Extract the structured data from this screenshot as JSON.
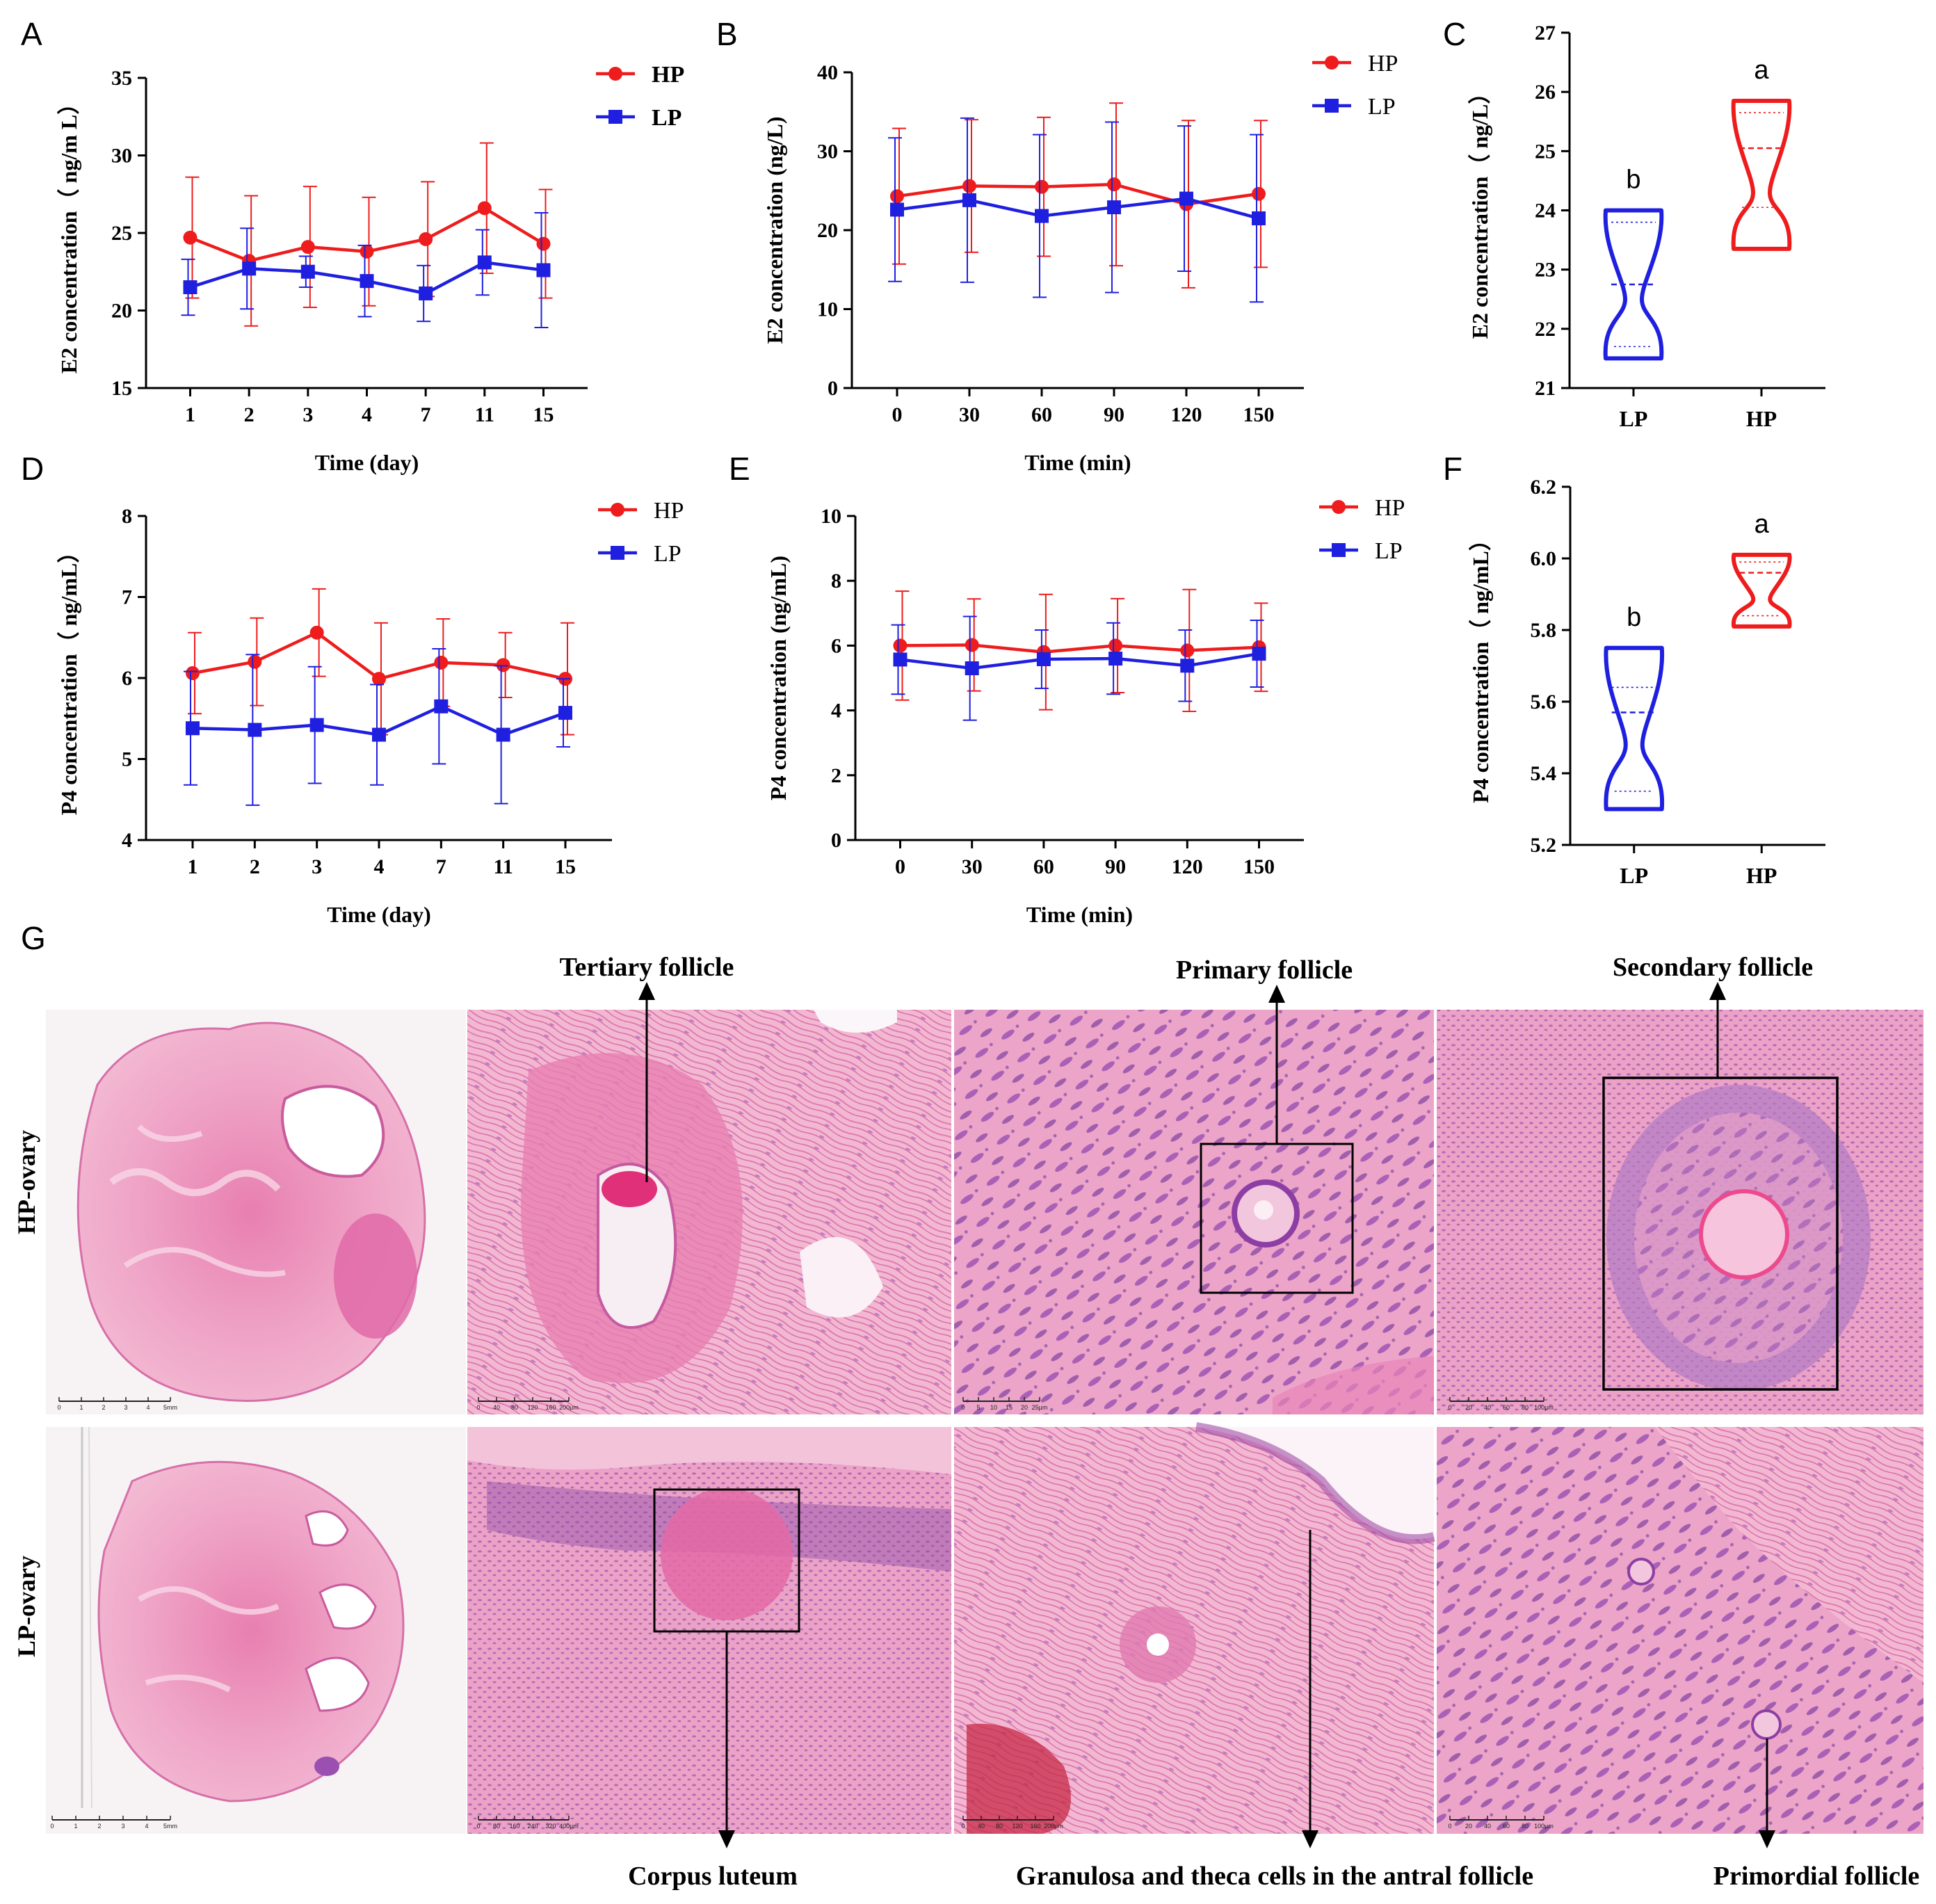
{
  "chart_data": [
    {
      "id": "A",
      "type": "line",
      "letter": "A",
      "xlabel": "Time (day)",
      "ylabel": "E2 concentration（ ng/m L）",
      "categories": [
        "1",
        "2",
        "3",
        "4",
        "7",
        "11",
        "15"
      ],
      "ylim": [
        15,
        35
      ],
      "yticks": [
        15,
        20,
        25,
        30,
        35
      ],
      "legend_bold": true,
      "series": [
        {
          "name": "HP",
          "color": "#ee1c1c",
          "marker": "circle",
          "values": [
            24.7,
            23.2,
            24.1,
            23.8,
            24.6,
            26.6,
            24.3
          ],
          "errors": [
            3.9,
            4.2,
            3.9,
            3.5,
            3.7,
            4.2,
            3.5
          ]
        },
        {
          "name": "LP",
          "color": "#1f1fe0",
          "marker": "square",
          "values": [
            21.5,
            22.7,
            22.5,
            21.9,
            21.1,
            23.1,
            22.6
          ],
          "errors": [
            1.8,
            2.6,
            1.0,
            2.3,
            1.8,
            2.1,
            3.7
          ]
        }
      ]
    },
    {
      "id": "B",
      "type": "line",
      "letter": "B",
      "xlabel": "Time (min)",
      "ylabel": "E2 concentration (ng/L)",
      "categories": [
        "0",
        "30",
        "60",
        "90",
        "120",
        "150"
      ],
      "ylim": [
        0,
        40
      ],
      "yticks": [
        0,
        10,
        20,
        30,
        40
      ],
      "legend_bold": false,
      "series": [
        {
          "name": "HP",
          "color": "#ee1c1c",
          "marker": "circle",
          "values": [
            24.3,
            25.6,
            25.5,
            25.8,
            23.3,
            24.6
          ],
          "errors": [
            8.6,
            8.4,
            8.8,
            10.3,
            10.6,
            9.3
          ]
        },
        {
          "name": "LP",
          "color": "#1f1fe0",
          "marker": "square",
          "values": [
            22.6,
            23.8,
            21.8,
            22.9,
            24.0,
            21.5
          ],
          "errors": [
            9.1,
            10.4,
            10.3,
            10.8,
            9.2,
            10.6
          ]
        }
      ]
    },
    {
      "id": "C",
      "type": "violin",
      "letter": "C",
      "ylabel": "E2 concentration（ ng/L）",
      "categories": [
        "LP",
        "HP"
      ],
      "ylim": [
        21,
        27
      ],
      "yticks": [
        21,
        22,
        23,
        24,
        25,
        26,
        27
      ],
      "groups": [
        {
          "name": "LP",
          "color": "#1f1fe0",
          "min": 21.5,
          "max": 24.0,
          "median": 22.75,
          "q1": 21.7,
          "q3": 23.8,
          "sig": "b"
        },
        {
          "name": "HP",
          "color": "#ee1c1c",
          "min": 23.35,
          "max": 25.85,
          "median": 25.05,
          "q1": 24.05,
          "q3": 25.65,
          "sig": "a"
        }
      ]
    },
    {
      "id": "D",
      "type": "line",
      "letter": "D",
      "xlabel": "Time (day)",
      "ylabel": "P4 concentration（ ng/mL）",
      "categories": [
        "1",
        "2",
        "3",
        "4",
        "7",
        "11",
        "15"
      ],
      "ylim": [
        4,
        8
      ],
      "yticks": [
        4,
        5,
        6,
        7,
        8
      ],
      "legend_bold": false,
      "series": [
        {
          "name": "HP",
          "color": "#ee1c1c",
          "marker": "circle",
          "values": [
            6.06,
            6.2,
            6.56,
            5.99,
            6.19,
            6.16,
            5.99
          ],
          "errors": [
            0.5,
            0.54,
            0.54,
            0.69,
            0.54,
            0.4,
            0.69
          ]
        },
        {
          "name": "LP",
          "color": "#1f1fe0",
          "marker": "square",
          "values": [
            5.38,
            5.36,
            5.42,
            5.3,
            5.65,
            5.3,
            5.57
          ],
          "errors": [
            0.7,
            0.93,
            0.72,
            0.62,
            0.71,
            0.85,
            0.42
          ]
        }
      ]
    },
    {
      "id": "E",
      "type": "line",
      "letter": "E",
      "xlabel": "Time (min)",
      "ylabel": "P4 concentration (ng/mL)",
      "categories": [
        "0",
        "30",
        "60",
        "90",
        "120",
        "150"
      ],
      "ylim": [
        0,
        10
      ],
      "yticks": [
        0,
        2,
        4,
        6,
        8,
        10
      ],
      "legend_bold": false,
      "series": [
        {
          "name": "HP",
          "color": "#ee1c1c",
          "marker": "circle",
          "values": [
            6.0,
            6.02,
            5.8,
            6.0,
            5.85,
            5.95
          ],
          "errors": [
            1.68,
            1.42,
            1.78,
            1.45,
            1.88,
            1.36
          ]
        },
        {
          "name": "LP",
          "color": "#1f1fe0",
          "marker": "square",
          "values": [
            5.57,
            5.3,
            5.58,
            5.6,
            5.38,
            5.75
          ],
          "errors": [
            1.07,
            1.6,
            0.9,
            1.1,
            1.1,
            1.03
          ]
        }
      ]
    },
    {
      "id": "F",
      "type": "violin",
      "letter": "F",
      "ylabel": "P4 concentration（ ng/mL）",
      "categories": [
        "LP",
        "HP"
      ],
      "ylim": [
        5.2,
        6.2
      ],
      "yticks": [
        5.2,
        5.4,
        5.6,
        5.8,
        6.0,
        6.2
      ],
      "tick_decimals": 1,
      "groups": [
        {
          "name": "LP",
          "color": "#1f1fe0",
          "min": 5.3,
          "max": 5.75,
          "median": 5.57,
          "q1": 5.35,
          "q3": 5.64,
          "sig": "b"
        },
        {
          "name": "HP",
          "color": "#ee1c1c",
          "min": 5.81,
          "max": 6.01,
          "median": 5.96,
          "q1": 5.84,
          "q3": 5.99,
          "sig": "a"
        }
      ]
    }
  ],
  "panel_g": {
    "letter": "G",
    "row_labels": [
      "HP-ovary",
      "LP-ovary"
    ],
    "annotations_top": [
      "Tertiary follicle",
      "Primary follicle",
      "Secondary follicle"
    ],
    "annotations_bottom": [
      "Corpus luteum",
      "Granulosa and theca cells in the antral follicle",
      "Primordial follicle"
    ],
    "scale_bars": [
      {
        "ticks": [
          "0",
          "1",
          "2",
          "3",
          "4",
          "5mm"
        ]
      },
      {
        "ticks": [
          "0",
          "40",
          "80",
          "120",
          "160",
          "200µm"
        ]
      },
      {
        "ticks": [
          "0",
          "5",
          "10",
          "15",
          "20",
          "25µm"
        ]
      },
      {
        "ticks": [
          "0",
          "20",
          "40",
          "60",
          "80",
          "100µm"
        ]
      },
      {
        "ticks": [
          "0",
          "1",
          "2",
          "3",
          "4",
          "5mm"
        ]
      },
      {
        "ticks": [
          "0",
          "80",
          "160",
          "240",
          "320",
          "400µm"
        ]
      },
      {
        "ticks": [
          "0",
          "40",
          "80",
          "120",
          "160",
          "200µm"
        ]
      },
      {
        "ticks": [
          "0",
          "20",
          "40",
          "60",
          "80",
          "100µm"
        ]
      }
    ]
  }
}
